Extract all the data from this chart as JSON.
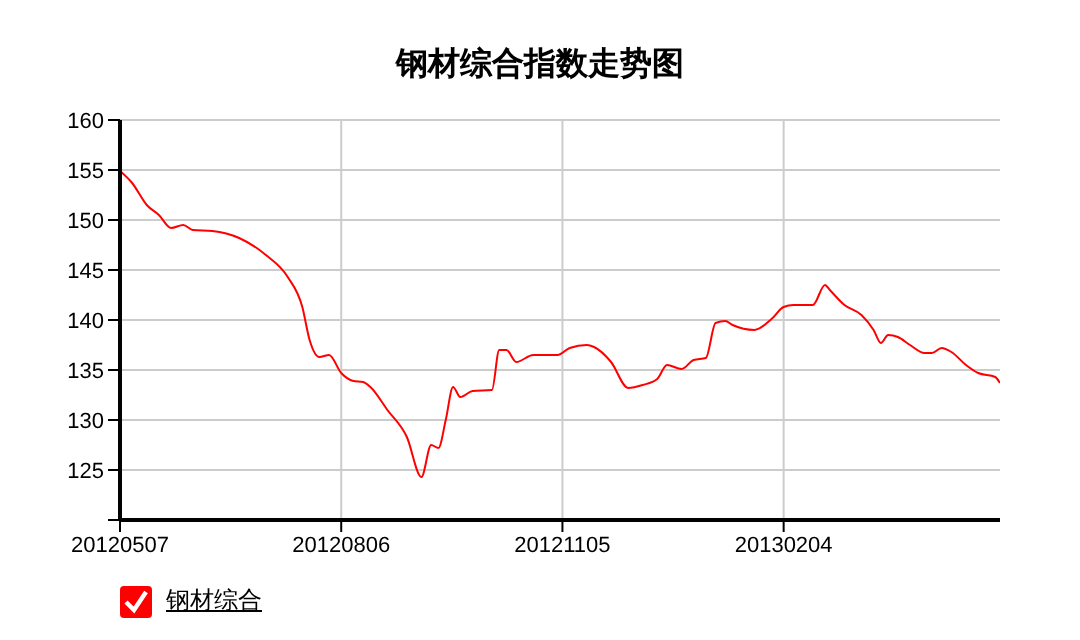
{
  "chart_data": {
    "type": "line",
    "title": "钢材综合指数走势图",
    "x": [
      "2012-05-07",
      "2012-05-12",
      "2012-05-18",
      "2012-05-23",
      "2012-05-28",
      "2012-06-02",
      "2012-06-06",
      "2012-06-14",
      "2012-06-25",
      "2012-07-06",
      "2012-07-15",
      "2012-07-21",
      "2012-07-24",
      "2012-07-28",
      "2012-08-01",
      "2012-08-06",
      "2012-08-11",
      "2012-08-15",
      "2012-08-18",
      "2012-08-25",
      "2012-09-02",
      "2012-09-08",
      "2012-09-12",
      "2012-09-15",
      "2012-09-18",
      "2012-09-21",
      "2012-09-24",
      "2012-09-29",
      "2012-10-07",
      "2012-10-10",
      "2012-10-13",
      "2012-10-17",
      "2012-10-24",
      "2012-11-03",
      "2012-11-08",
      "2012-11-15",
      "2012-11-18",
      "2012-11-25",
      "2012-12-02",
      "2012-12-08",
      "2012-12-14",
      "2012-12-18",
      "2012-12-24",
      "2012-12-29",
      "2013-01-03",
      "2013-01-07",
      "2013-01-11",
      "2013-01-14",
      "2013-01-23",
      "2013-01-30",
      "2013-02-04",
      "2013-02-08",
      "2013-02-16",
      "2013-02-21",
      "2013-02-23",
      "2013-03-01",
      "2013-03-08",
      "2013-03-13",
      "2013-03-16",
      "2013-03-19",
      "2013-03-23",
      "2013-03-28",
      "2013-04-03",
      "2013-04-06",
      "2013-04-10",
      "2013-04-14",
      "2013-04-20",
      "2013-04-25",
      "2013-05-02",
      "2013-05-04"
    ],
    "series": [
      {
        "name": "钢材综合",
        "color": "#ff0000",
        "values": [
          154.9,
          153.7,
          151.5,
          150.5,
          149.2,
          149.5,
          149.0,
          148.9,
          148.2,
          146.5,
          144.3,
          141.3,
          138.0,
          136.3,
          136.5,
          134.7,
          133.9,
          133.8,
          133.3,
          131.0,
          128.3,
          124.3,
          127.5,
          127.2,
          130.0,
          133.3,
          132.3,
          132.9,
          133.0,
          137.0,
          137.0,
          135.8,
          136.5,
          136.5,
          137.2,
          137.5,
          137.3,
          135.8,
          133.2,
          133.5,
          134.1,
          135.5,
          135.1,
          136.0,
          136.2,
          139.7,
          139.9,
          139.5,
          139.0,
          140.1,
          141.3,
          141.5,
          141.5,
          143.5,
          143.0,
          141.5,
          140.5,
          139.0,
          137.7,
          138.5,
          138.3,
          137.5,
          136.7,
          136.7,
          137.2,
          136.8,
          135.5,
          134.7,
          134.3,
          133.7
        ]
      }
    ],
    "xlim": [
      "2012-05-07",
      "2013-05-04"
    ],
    "xticks": [
      {
        "value": "2012-05-07",
        "label": "20120507"
      },
      {
        "value": "2012-08-06",
        "label": "20120806"
      },
      {
        "value": "2012-11-05",
        "label": "20121105"
      },
      {
        "value": "2013-02-04",
        "label": "20130204"
      }
    ],
    "ylim": [
      120,
      160
    ],
    "yticks": [
      {
        "value": 120,
        "label": null
      },
      125,
      130,
      135,
      140,
      145,
      150,
      155,
      160
    ],
    "grid": true,
    "legend": "bottom left",
    "marker": "none",
    "line_style": "solid"
  }
}
